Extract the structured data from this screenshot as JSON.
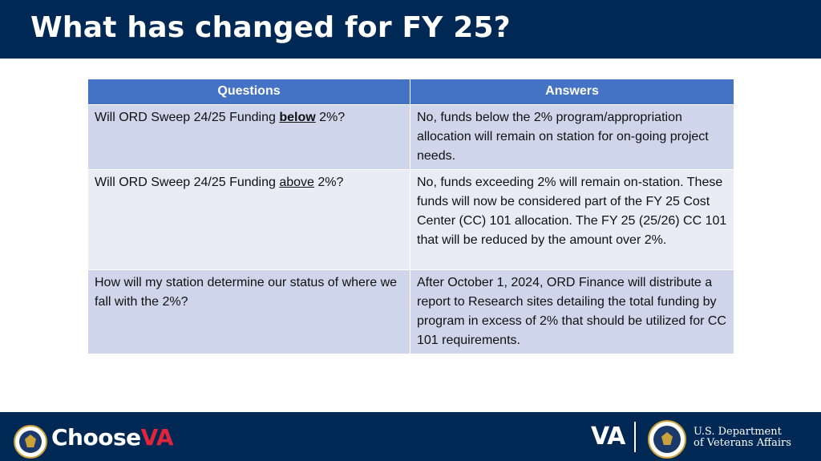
{
  "slide": {
    "title": "What has changed for FY 25?"
  },
  "table": {
    "headers": [
      "Questions",
      "Answers"
    ],
    "rows": [
      {
        "q_before": "Will ORD Sweep 24/25 Funding ",
        "q_emph": "below",
        "q_after": " 2%?",
        "answer": "No, funds below the 2% program/appropriation allocation will remain on station for on-going project needs."
      },
      {
        "q_before": "Will ORD Sweep 24/25 Funding ",
        "q_emph": "above",
        "q_after": " 2%?",
        "answer": "No, funds exceeding 2% will remain on-station. These funds will now be considered part of the FY 25 Cost Center (CC) 101 allocation.  The FY 25 (25/26) CC 101 that will be reduced by the amount over 2%."
      },
      {
        "question": "How will my station determine our status of where we fall with the 2%?",
        "answer": "After October 1, 2024, ORD Finance will distribute a report to Research sites detailing the total funding by program in excess of 2% that should be utilized for CC 101 requirements."
      }
    ]
  },
  "footer": {
    "choose_text": "Choose",
    "va_check_text": "VA",
    "va_mark": "VA",
    "dept_line1": "U.S. Department",
    "dept_line2": "of Veterans Affairs",
    "left_seal_icon": "va-seal-icon",
    "right_seal_icon": "va-seal-icon"
  },
  "colors": {
    "navy": "#002855",
    "header_blue": "#4472c4",
    "row_dark": "#cfd5ea",
    "row_light": "#e9ebf5",
    "accent_red": "#e0243c"
  }
}
